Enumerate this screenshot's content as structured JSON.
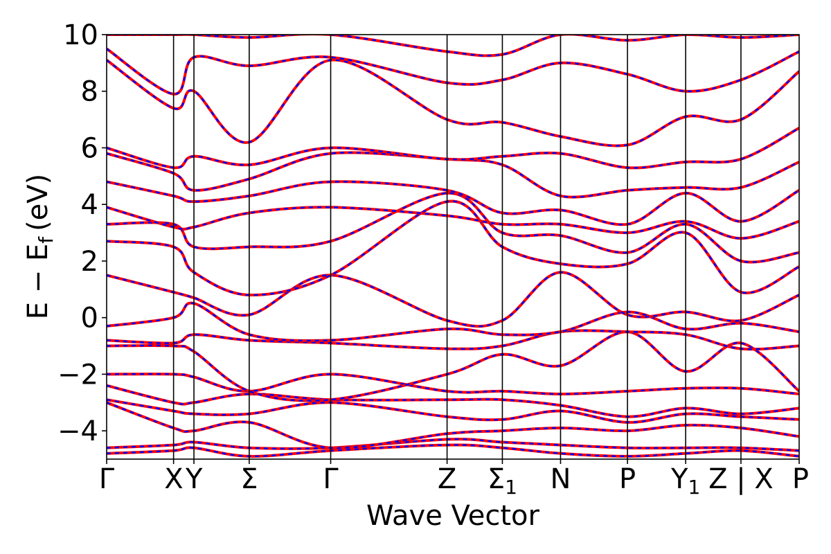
{
  "chart_data": {
    "type": "line",
    "title": "",
    "xlabel": "Wave Vector",
    "ylabel": "E − E",
    "ylabel_subscript": "f",
    "ylabel_unit": "(eV)",
    "ylim": [
      -5,
      10
    ],
    "yticks": [
      -4,
      -2,
      0,
      2,
      4,
      6,
      8,
      10
    ],
    "ytick_labels": [
      "−4",
      "−2",
      "0",
      "2",
      "4",
      "6",
      "8",
      "10"
    ],
    "grid": false,
    "legend": "none",
    "path_positions": [
      0,
      1.15,
      1.5,
      2.45,
      3.85,
      5.85,
      6.8,
      7.8,
      8.95,
      9.95,
      10.9,
      11.9
    ],
    "high_symmetry_labels": [
      {
        "main": "Γ",
        "sub": ""
      },
      {
        "main": "X",
        "sub": ""
      },
      {
        "main": "Y",
        "sub": ""
      },
      {
        "main": "Σ",
        "sub": ""
      },
      {
        "main": "Γ",
        "sub": ""
      },
      {
        "main": "Z",
        "sub": ""
      },
      {
        "main": "Σ",
        "sub": "1"
      },
      {
        "main": "N",
        "sub": ""
      },
      {
        "main": "P",
        "sub": ""
      },
      {
        "main": "Y",
        "sub": "1"
      },
      {
        "main": "Z | X",
        "sub": ""
      },
      {
        "main": "P",
        "sub": ""
      }
    ],
    "colors": {
      "series_a": "#ff0000",
      "series_b": "#0000ff",
      "axis": "#000000"
    },
    "series": [
      {
        "values": [
          -4.8,
          -4.7,
          -4.6,
          -4.9,
          -4.7,
          -4.5,
          -4.6,
          -4.8,
          -4.9,
          -4.8,
          -4.7,
          -4.9
        ]
      },
      {
        "values": [
          -4.6,
          -4.5,
          -4.4,
          -4.6,
          -4.6,
          -4.3,
          -4.4,
          -4.5,
          -4.6,
          -4.6,
          -4.6,
          -4.7
        ]
      },
      {
        "values": [
          -3.0,
          -3.9,
          -4.0,
          -3.7,
          -4.6,
          -4.1,
          -4.0,
          -3.9,
          -4.0,
          -3.8,
          -3.9,
          -4.2
        ]
      },
      {
        "values": [
          -2.9,
          -3.3,
          -3.4,
          -3.4,
          -3.0,
          -3.5,
          -3.6,
          -3.3,
          -3.7,
          -3.4,
          -3.5,
          -3.6
        ]
      },
      {
        "values": [
          -2.4,
          -3.0,
          -3.0,
          -2.7,
          -2.9,
          -2.9,
          -2.9,
          -3.1,
          -3.5,
          -3.2,
          -3.4,
          -3.2
        ]
      },
      {
        "values": [
          -2.0,
          -2.0,
          -2.1,
          -2.6,
          -2.0,
          -2.6,
          -2.6,
          -2.7,
          -2.6,
          -2.5,
          -2.5,
          -2.7
        ]
      },
      {
        "values": [
          -1.0,
          -1.0,
          -1.2,
          -2.6,
          -2.9,
          -2.0,
          -1.3,
          -1.7,
          -0.5,
          -1.9,
          -0.9,
          -2.6
        ]
      },
      {
        "values": [
          -0.8,
          -0.9,
          -0.6,
          -0.8,
          -0.9,
          -1.1,
          -1.0,
          -0.5,
          -0.5,
          -0.6,
          -1.1,
          -1.0
        ]
      },
      {
        "values": [
          -0.3,
          0.0,
          0.5,
          -0.6,
          -0.8,
          -0.4,
          -0.6,
          -0.5,
          0.2,
          -0.4,
          -0.2,
          -0.5
        ]
      },
      {
        "values": [
          1.5,
          0.9,
          0.7,
          0.1,
          1.5,
          -0.1,
          -0.1,
          1.6,
          0.1,
          0.2,
          -0.1,
          0.8
        ]
      },
      {
        "values": [
          2.7,
          2.5,
          1.6,
          0.8,
          1.5,
          4.1,
          2.5,
          1.9,
          1.9,
          3.0,
          0.9,
          1.8
        ]
      },
      {
        "values": [
          3.3,
          3.3,
          2.5,
          2.5,
          2.7,
          4.4,
          3.0,
          2.9,
          2.3,
          3.3,
          2.0,
          2.3
        ]
      },
      {
        "values": [
          3.9,
          3.2,
          3.2,
          3.7,
          3.9,
          3.6,
          3.3,
          3.3,
          3.0,
          3.4,
          2.8,
          3.4
        ]
      },
      {
        "values": [
          4.8,
          4.3,
          4.1,
          4.3,
          4.8,
          4.5,
          3.7,
          3.8,
          3.3,
          4.4,
          3.4,
          4.5
        ]
      },
      {
        "values": [
          5.8,
          5.1,
          4.5,
          4.9,
          5.8,
          5.6,
          5.4,
          4.3,
          4.5,
          4.6,
          4.6,
          5.5
        ]
      },
      {
        "values": [
          6.0,
          5.3,
          5.7,
          5.4,
          6.0,
          5.6,
          5.7,
          5.8,
          5.3,
          5.5,
          5.6,
          6.7
        ]
      },
      {
        "values": [
          9.1,
          7.4,
          8.0,
          6.2,
          9.1,
          7.0,
          6.9,
          6.4,
          6.1,
          7.1,
          7.0,
          8.7
        ]
      },
      {
        "values": [
          9.5,
          7.9,
          9.2,
          8.9,
          9.2,
          8.3,
          8.4,
          9.0,
          8.6,
          8.0,
          8.4,
          9.4
        ]
      },
      {
        "values": [
          10.0,
          10.0,
          10.0,
          9.9,
          10.0,
          9.4,
          9.3,
          10.0,
          9.8,
          10.0,
          9.9,
          10.0
        ]
      }
    ]
  }
}
